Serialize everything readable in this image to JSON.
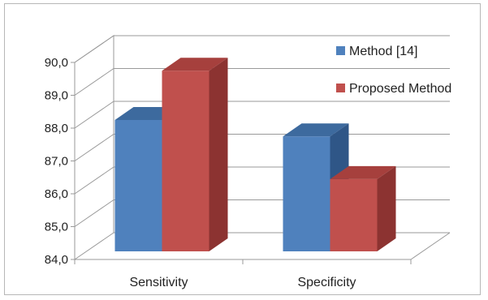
{
  "chart_data": {
    "type": "bar",
    "style": "3d-clustered",
    "categories": [
      "Sensitivity",
      "Specificity"
    ],
    "series": [
      {
        "name": "Method [14]",
        "values": [
          88.0,
          87.5
        ],
        "color": "#4f81bd",
        "top_color": "#3d6a9e",
        "side_color": "#2f5687"
      },
      {
        "name": "Proposed Method",
        "values": [
          89.5,
          86.2
        ],
        "color": "#c0504d",
        "top_color": "#a6403d",
        "side_color": "#8c3331"
      }
    ],
    "ylim": [
      84,
      90
    ],
    "yticks": [
      "84,0",
      "85,0",
      "86,0",
      "87,0",
      "88,0",
      "89,0",
      "90,0"
    ],
    "grid": true,
    "legend": "top-right",
    "title": "",
    "xlabel": "",
    "ylabel": ""
  }
}
